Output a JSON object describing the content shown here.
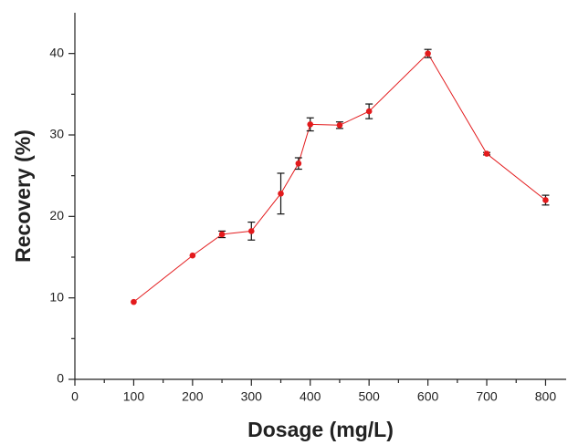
{
  "chart_data": {
    "type": "line",
    "x_label": "Dosage (mg/L)",
    "y_label": "Recovery (%)",
    "x": [
      100,
      200,
      250,
      300,
      350,
      380,
      400,
      450,
      500,
      600,
      700,
      800
    ],
    "series": [
      {
        "color": "#e31a1c",
        "values": [
          9.5,
          15.2,
          17.8,
          18.2,
          22.8,
          26.5,
          31.3,
          31.2,
          32.9,
          40.0,
          27.7,
          22.0
        ],
        "errors": [
          null,
          null,
          0.4,
          1.1,
          2.5,
          0.7,
          0.8,
          0.4,
          0.9,
          0.5,
          0.15,
          0.6
        ]
      }
    ],
    "xlim": [
      0,
      835
    ],
    "xticks": [
      0,
      100,
      200,
      300,
      400,
      500,
      600,
      700,
      800
    ],
    "ylim": [
      0,
      45
    ],
    "yticks": [
      0,
      10,
      20,
      30,
      40
    ]
  }
}
